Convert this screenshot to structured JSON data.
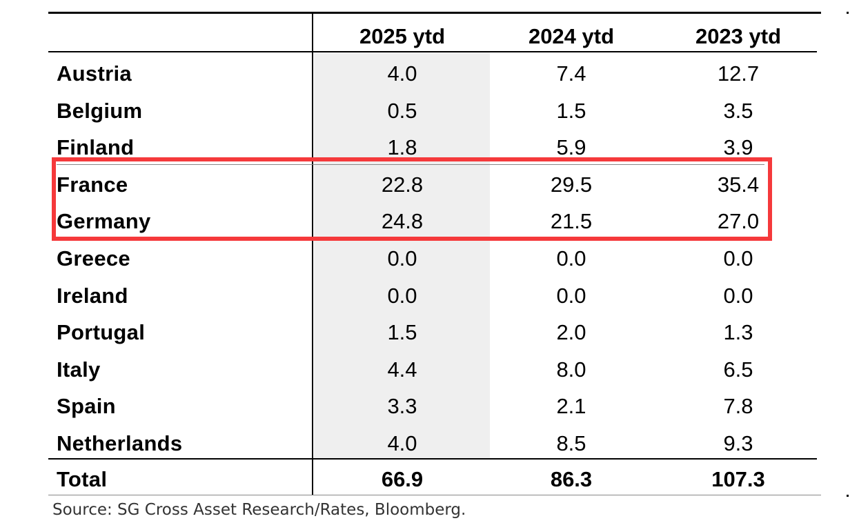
{
  "chart_data": {
    "type": "table",
    "columns": [
      "",
      "2025 ytd",
      "2024 ytd",
      "2023 ytd"
    ],
    "rows": [
      {
        "country": "Austria",
        "values": [
          "4.0",
          "7.4",
          "12.7"
        ]
      },
      {
        "country": "Belgium",
        "values": [
          "0.5",
          "1.5",
          "3.5"
        ]
      },
      {
        "country": "Finland",
        "values": [
          "1.8",
          "5.9",
          "3.9"
        ]
      },
      {
        "country": "France",
        "values": [
          "22.8",
          "29.5",
          "35.4"
        ]
      },
      {
        "country": "Germany",
        "values": [
          "24.8",
          "21.5",
          "27.0"
        ]
      },
      {
        "country": "Greece",
        "values": [
          "0.0",
          "0.0",
          "0.0"
        ]
      },
      {
        "country": "Ireland",
        "values": [
          "0.0",
          "0.0",
          "0.0"
        ]
      },
      {
        "country": "Portugal",
        "values": [
          "1.5",
          "2.0",
          "1.3"
        ]
      },
      {
        "country": "Italy",
        "values": [
          "4.4",
          "8.0",
          "6.5"
        ]
      },
      {
        "country": "Spain",
        "values": [
          "3.3",
          "2.1",
          "7.8"
        ]
      },
      {
        "country": "Netherlands",
        "values": [
          "4.0",
          "8.5",
          "9.3"
        ]
      }
    ],
    "total": {
      "label": "Total",
      "values": [
        "66.9",
        "86.3",
        "107.3"
      ]
    },
    "highlighted_rows": [
      "France",
      "Germany"
    ],
    "highlight_color": "#f5393b",
    "shaded_column": "2025 ytd",
    "shade_color": "#efefef"
  },
  "source": "Source: SG Cross Asset Research/Rates, Bloomberg."
}
